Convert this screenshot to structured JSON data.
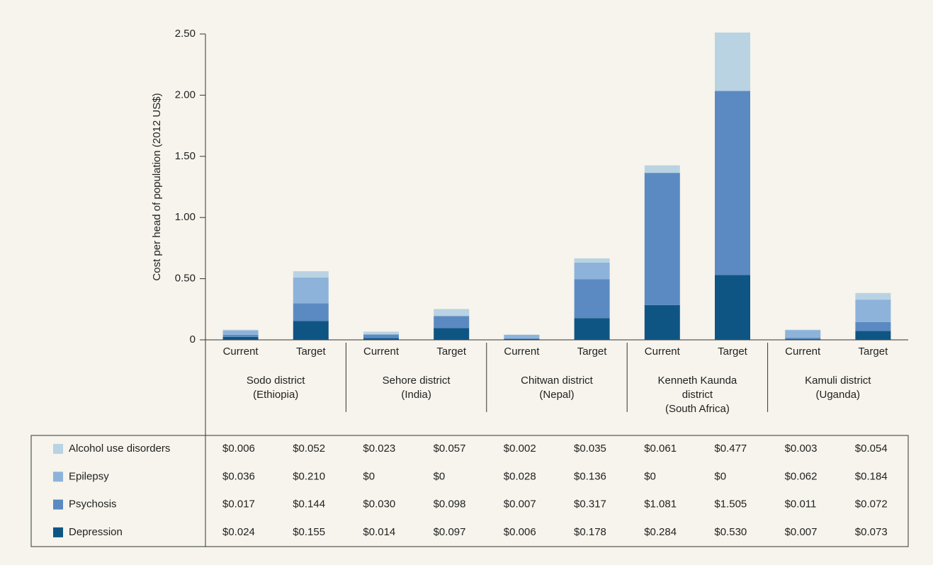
{
  "chart_data": {
    "type": "bar",
    "stacked": true,
    "y_label": "Cost per head of population (2012 US$)",
    "categories": [
      "Current",
      "Target",
      "Current",
      "Target",
      "Current",
      "Target",
      "Current",
      "Target",
      "Current",
      "Target"
    ],
    "groups": [
      [
        "Sodo district",
        "(Ethiopia)"
      ],
      [
        "Sehore district",
        "(India)"
      ],
      [
        "Chitwan district",
        "(Nepal)"
      ],
      [
        "Kenneth Kaunda",
        "district",
        "(South Africa)"
      ],
      [
        "Kamuli district",
        "(Uganda)"
      ]
    ],
    "ylim": [
      0,
      2.5
    ],
    "yticks": [
      0,
      {
        "value": 0.5,
        "label": "0.50"
      },
      {
        "value": 1,
        "label": "1.00"
      },
      {
        "value": 1.5,
        "label": "1.50"
      },
      {
        "value": 2,
        "label": "2.00"
      },
      {
        "value": 2.5,
        "label": "2.50"
      }
    ],
    "series": [
      {
        "name": "Alcohol use disorders",
        "color": "#b9d3e3",
        "values": [
          0.006,
          0.052,
          0.023,
          0.057,
          0.002,
          0.035,
          0.061,
          0.477,
          0.003,
          0.054
        ],
        "value_labels": [
          "$0.006",
          "$0.052",
          "$0.023",
          "$0.057",
          "$0.002",
          "$0.035",
          "$0.061",
          "$0.477",
          "$0.003",
          "$0.054"
        ]
      },
      {
        "name": "Epilepsy",
        "color": "#8db3da",
        "values": [
          0.036,
          0.21,
          0,
          0,
          0.028,
          0.136,
          0,
          0,
          0.062,
          0.184
        ],
        "value_labels": [
          "$0.036",
          "$0.210",
          "$0",
          "$0",
          "$0.028",
          "$0.136",
          "$0",
          "$0",
          "$0.062",
          "$0.184"
        ]
      },
      {
        "name": "Psychosis",
        "color": "#5b8ac2",
        "values": [
          0.017,
          0.144,
          0.03,
          0.098,
          0.007,
          0.317,
          1.081,
          1.505,
          0.011,
          0.072
        ],
        "value_labels": [
          "$0.017",
          "$0.144",
          "$0.030",
          "$0.098",
          "$0.007",
          "$0.317",
          "$1.081",
          "$1.505",
          "$0.011",
          "$0.072"
        ]
      },
      {
        "name": "Depression",
        "color": "#0f5584",
        "values": [
          0.024,
          0.155,
          0.014,
          0.097,
          0.006,
          0.178,
          0.284,
          0.53,
          0.007,
          0.073
        ],
        "value_labels": [
          "$0.024",
          "$0.155",
          "$0.014",
          "$0.097",
          "$0.006",
          "$0.178",
          "$0.284",
          "$0.530",
          "$0.007",
          "$0.073"
        ]
      }
    ]
  }
}
